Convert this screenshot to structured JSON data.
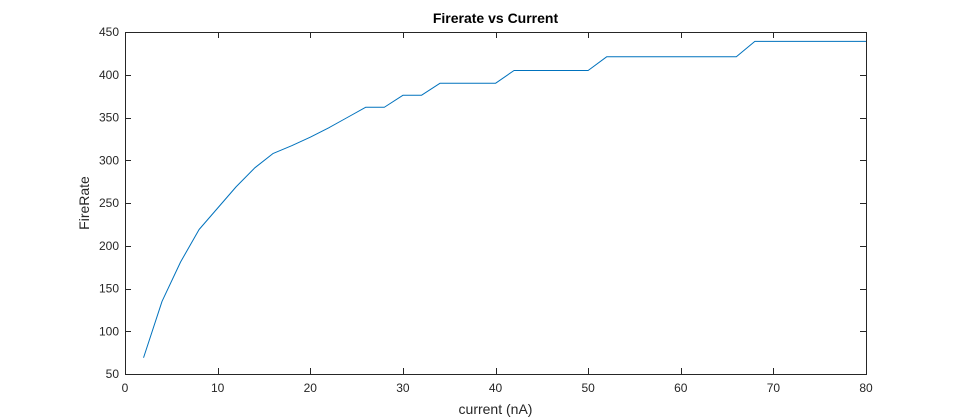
{
  "chart_data": {
    "type": "line",
    "title": "Firerate vs Current",
    "xlabel": "current (nA)",
    "ylabel": "FireRate",
    "xlim": [
      0,
      80
    ],
    "ylim": [
      50,
      450
    ],
    "xticks": [
      0,
      10,
      20,
      30,
      40,
      50,
      60,
      70,
      80
    ],
    "yticks": [
      50,
      100,
      150,
      200,
      250,
      300,
      350,
      400,
      450
    ],
    "grid": false,
    "box": true,
    "series": [
      {
        "color": "#0072BD",
        "x": [
          2,
          4,
          6,
          8,
          10,
          12,
          14,
          16,
          18,
          20,
          22,
          24,
          26,
          28,
          30,
          32,
          34,
          36,
          38,
          40,
          42,
          44,
          46,
          48,
          50,
          52,
          54,
          56,
          58,
          60,
          62,
          64,
          66,
          68,
          70,
          72,
          74,
          76,
          78,
          80
        ],
        "values": [
          69,
          135,
          181,
          219,
          244,
          269,
          291,
          308,
          317,
          327,
          338,
          350,
          362,
          362,
          376,
          376,
          390,
          390,
          390,
          390,
          405,
          405,
          405,
          405,
          405,
          421,
          421,
          421,
          421,
          421,
          421,
          421,
          421,
          439,
          439,
          439,
          439,
          439,
          439,
          439
        ]
      }
    ]
  }
}
